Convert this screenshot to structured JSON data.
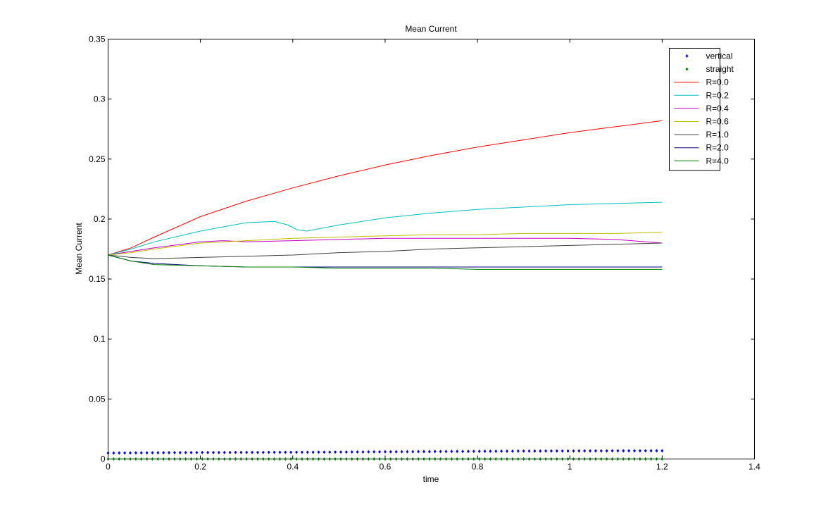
{
  "chart_data": {
    "type": "line",
    "title": "Mean Current",
    "xlabel": "time",
    "ylabel": "Mean Current",
    "xlim": [
      0,
      1.4
    ],
    "ylim": [
      0,
      0.35
    ],
    "xticks": [
      0,
      0.2,
      0.4,
      0.6,
      0.8,
      1,
      1.2,
      1.4
    ],
    "yticks": [
      0,
      0.05,
      0.1,
      0.15,
      0.2,
      0.25,
      0.3,
      0.35
    ],
    "xtick_labels": [
      "0",
      "0.2",
      "0.4",
      "0.6",
      "0.8",
      "1",
      "1.2",
      "1.4"
    ],
    "ytick_labels": [
      "0",
      "0.05",
      "0.1",
      "0.15",
      "0.2",
      "0.25",
      "0.3",
      "0.35"
    ],
    "grid": false,
    "legend_position": "top-right",
    "series": [
      {
        "name": "vertical",
        "style": "markers",
        "color": "#0000ff",
        "x": [
          0,
          0.1,
          0.2,
          0.3,
          0.4,
          0.5,
          0.6,
          0.7,
          0.8,
          0.9,
          1.0,
          1.1,
          1.2
        ],
        "y": [
          0.005,
          0.0052,
          0.0054,
          0.0055,
          0.0056,
          0.0058,
          0.006,
          0.0062,
          0.0064,
          0.0066,
          0.0067,
          0.0068,
          0.0068
        ]
      },
      {
        "name": "straight",
        "style": "markers",
        "color": "#008000",
        "x": [
          0,
          0.1,
          0.2,
          0.3,
          0.4,
          0.5,
          0.6,
          0.7,
          0.8,
          0.9,
          1.0,
          1.1,
          1.2
        ],
        "y": [
          0,
          0,
          0,
          0,
          0,
          0,
          0,
          0,
          0,
          0,
          0,
          0,
          0
        ]
      },
      {
        "name": "R=0.0",
        "style": "line",
        "color": "#ff0000",
        "x": [
          0,
          0.05,
          0.1,
          0.2,
          0.3,
          0.4,
          0.5,
          0.6,
          0.7,
          0.8,
          0.9,
          1.0,
          1.1,
          1.2
        ],
        "y": [
          0.17,
          0.176,
          0.185,
          0.202,
          0.215,
          0.226,
          0.236,
          0.245,
          0.253,
          0.26,
          0.266,
          0.272,
          0.277,
          0.282
        ]
      },
      {
        "name": "R=0.2",
        "style": "line",
        "color": "#00bfbf",
        "x": [
          0,
          0.05,
          0.1,
          0.2,
          0.3,
          0.36,
          0.39,
          0.41,
          0.43,
          0.5,
          0.6,
          0.7,
          0.8,
          0.9,
          1.0,
          1.1,
          1.2
        ],
        "y": [
          0.17,
          0.175,
          0.181,
          0.19,
          0.197,
          0.198,
          0.195,
          0.191,
          0.19,
          0.195,
          0.201,
          0.205,
          0.208,
          0.21,
          0.212,
          0.213,
          0.214
        ]
      },
      {
        "name": "R=0.4",
        "style": "line",
        "color": "#bf00bf",
        "x": [
          0,
          0.05,
          0.1,
          0.2,
          0.25,
          0.3,
          0.4,
          0.5,
          0.6,
          0.7,
          0.8,
          0.9,
          1.0,
          1.1,
          1.2
        ],
        "y": [
          0.17,
          0.173,
          0.176,
          0.181,
          0.182,
          0.181,
          0.182,
          0.183,
          0.184,
          0.184,
          0.184,
          0.184,
          0.184,
          0.183,
          0.18
        ]
      },
      {
        "name": "R=0.6",
        "style": "line",
        "color": "#bfbf00",
        "x": [
          0,
          0.05,
          0.1,
          0.2,
          0.3,
          0.4,
          0.5,
          0.6,
          0.7,
          0.8,
          0.9,
          1.0,
          1.1,
          1.2
        ],
        "y": [
          0.17,
          0.172,
          0.175,
          0.18,
          0.182,
          0.184,
          0.185,
          0.186,
          0.187,
          0.187,
          0.188,
          0.188,
          0.188,
          0.189
        ]
      },
      {
        "name": "R=1.0",
        "style": "line",
        "color": "#3f3f3f",
        "x": [
          0,
          0.05,
          0.1,
          0.2,
          0.3,
          0.4,
          0.5,
          0.6,
          0.7,
          0.8,
          0.9,
          1.0,
          1.1,
          1.2
        ],
        "y": [
          0.17,
          0.168,
          0.167,
          0.168,
          0.169,
          0.17,
          0.172,
          0.173,
          0.175,
          0.176,
          0.177,
          0.178,
          0.179,
          0.18
        ]
      },
      {
        "name": "R=2.0",
        "style": "line",
        "color": "#00007f",
        "x": [
          0,
          0.05,
          0.1,
          0.2,
          0.3,
          0.4,
          0.5,
          0.6,
          0.7,
          0.8,
          0.9,
          1.0,
          1.1,
          1.2
        ],
        "y": [
          0.17,
          0.165,
          0.163,
          0.161,
          0.16,
          0.16,
          0.16,
          0.16,
          0.16,
          0.16,
          0.16,
          0.16,
          0.16,
          0.16
        ]
      },
      {
        "name": "R=4.0",
        "style": "line",
        "color": "#007f00",
        "x": [
          0,
          0.05,
          0.1,
          0.2,
          0.3,
          0.4,
          0.5,
          0.6,
          0.7,
          0.8,
          0.9,
          1.0,
          1.1,
          1.2
        ],
        "y": [
          0.17,
          0.165,
          0.162,
          0.161,
          0.16,
          0.16,
          0.159,
          0.159,
          0.159,
          0.158,
          0.158,
          0.158,
          0.158,
          0.158
        ]
      }
    ]
  }
}
